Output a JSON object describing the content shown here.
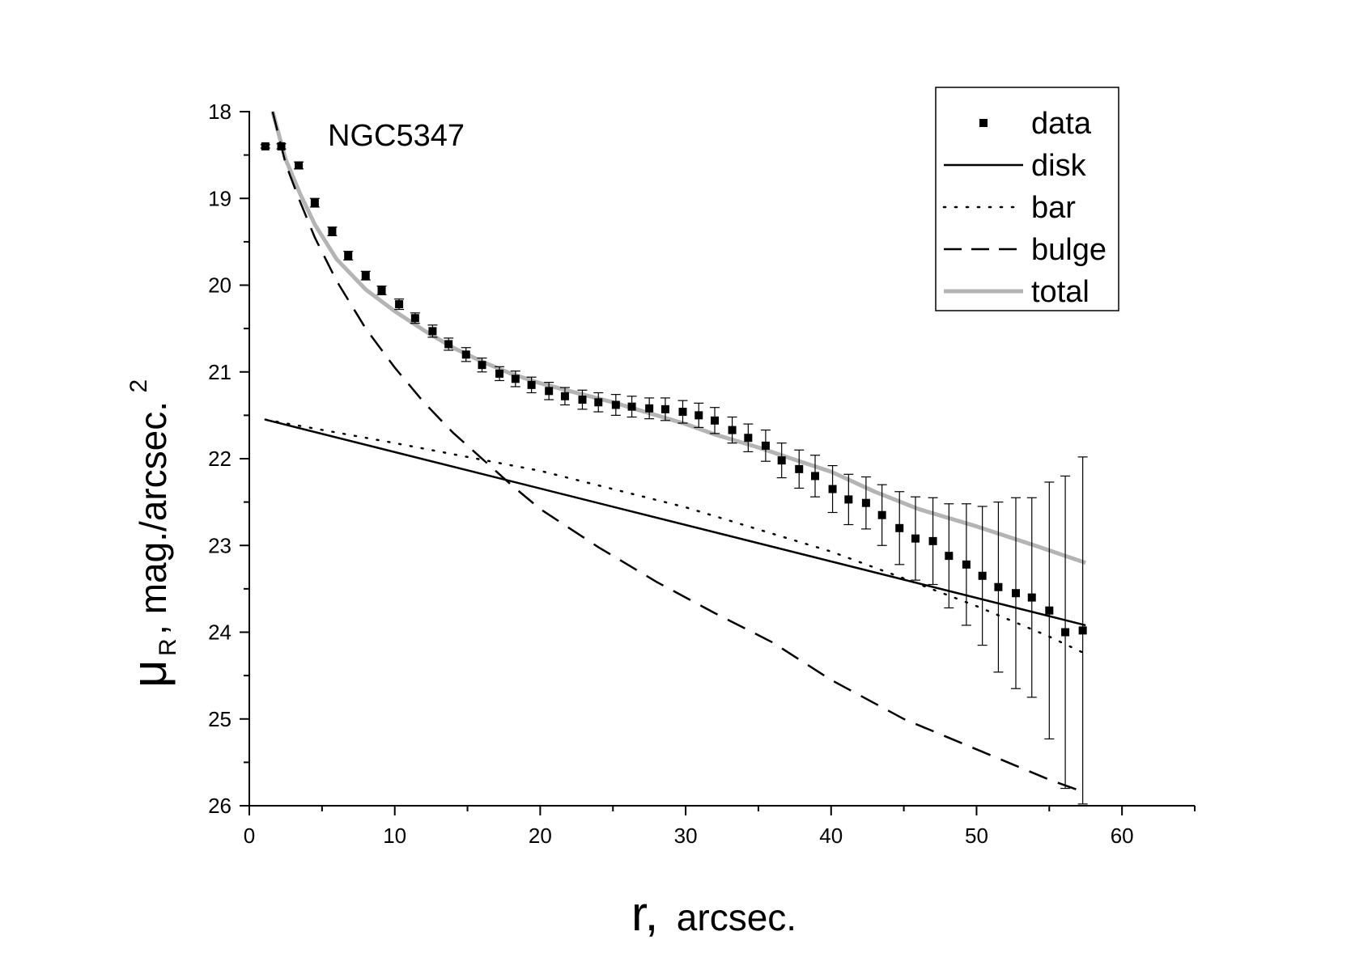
{
  "chart_data": {
    "type": "scatter",
    "title": "",
    "annotation": "NGC5347",
    "xlabel": {
      "main": "r,",
      "rest": "arcsec."
    },
    "ylabel": {
      "mu": "μ",
      "sub": "R",
      "rest": ", mag./arcsec.",
      "sup": "2"
    },
    "xlim": [
      0,
      65
    ],
    "ylim": [
      18,
      26
    ],
    "y_inverted": true,
    "x_ticks": [
      0,
      10,
      20,
      30,
      40,
      50,
      60
    ],
    "y_ticks": [
      18,
      19,
      20,
      21,
      22,
      23,
      24,
      25,
      26
    ],
    "legend_position": "top-right",
    "legend": [
      {
        "key": "data",
        "label": "data",
        "style": "square-marker",
        "color": "#000000"
      },
      {
        "key": "disk",
        "label": "disk",
        "style": "solid",
        "color": "#000000"
      },
      {
        "key": "bar",
        "label": "bar",
        "style": "dotted",
        "color": "#000000"
      },
      {
        "key": "bulge",
        "label": "bulge",
        "style": "dashed",
        "color": "#000000"
      },
      {
        "key": "total",
        "label": "total",
        "style": "solid-thick",
        "color": "#b4b4b4"
      }
    ],
    "data": {
      "r": [
        1.1,
        2.2,
        3.4,
        4.5,
        5.7,
        6.8,
        8.0,
        9.1,
        10.3,
        11.4,
        12.6,
        13.7,
        14.9,
        16.0,
        17.2,
        18.3,
        19.4,
        20.6,
        21.7,
        22.9,
        24.0,
        25.2,
        26.3,
        27.5,
        28.6,
        29.8,
        30.9,
        32.0,
        33.2,
        34.3,
        35.5,
        36.6,
        37.8,
        38.9,
        40.1,
        41.2,
        42.4,
        43.5,
        44.7,
        45.8,
        47.0,
        48.1,
        49.3,
        50.4,
        51.5,
        52.7,
        53.8,
        55.0,
        56.1,
        57.3
      ],
      "mu": [
        18.4,
        18.4,
        18.62,
        19.05,
        19.38,
        19.66,
        19.89,
        20.06,
        20.22,
        20.38,
        20.53,
        20.68,
        20.8,
        20.92,
        21.02,
        21.08,
        21.15,
        21.22,
        21.28,
        21.32,
        21.35,
        21.38,
        21.4,
        21.42,
        21.43,
        21.46,
        21.5,
        21.56,
        21.67,
        21.76,
        21.85,
        22.02,
        22.12,
        22.2,
        22.35,
        22.47,
        22.51,
        22.65,
        22.8,
        22.92,
        22.95,
        23.12,
        23.22,
        23.35,
        23.48,
        23.55,
        23.6,
        23.75,
        24.0,
        23.98
      ],
      "err": [
        0.02,
        0.03,
        0.04,
        0.05,
        0.05,
        0.05,
        0.05,
        0.05,
        0.06,
        0.06,
        0.07,
        0.07,
        0.08,
        0.08,
        0.08,
        0.09,
        0.09,
        0.1,
        0.1,
        0.11,
        0.11,
        0.12,
        0.12,
        0.12,
        0.13,
        0.13,
        0.14,
        0.15,
        0.15,
        0.16,
        0.18,
        0.2,
        0.22,
        0.24,
        0.27,
        0.29,
        0.3,
        0.35,
        0.42,
        0.48,
        0.5,
        0.6,
        0.7,
        0.8,
        0.98,
        1.1,
        1.15,
        1.48,
        1.8,
        2.0
      ]
    },
    "disk": {
      "r": [
        1.1,
        57.5
      ],
      "mu": [
        21.55,
        23.92
      ]
    },
    "bar": {
      "r": [
        1.1,
        10,
        20,
        30,
        40,
        45,
        50,
        55,
        57.5
      ],
      "mu": [
        21.55,
        21.82,
        22.14,
        22.56,
        23.07,
        23.38,
        23.7,
        24.05,
        24.25
      ]
    },
    "bulge": {
      "r": [
        1.6,
        2.5,
        3.4,
        4.5,
        6,
        8,
        10,
        12,
        14,
        16,
        18,
        20,
        22,
        24,
        26,
        28,
        30,
        32,
        34,
        36,
        40,
        45,
        50,
        55,
        57.5
      ],
      "mu": [
        18.0,
        18.6,
        19.0,
        19.45,
        19.95,
        20.5,
        20.95,
        21.35,
        21.7,
        22.0,
        22.3,
        22.58,
        22.8,
        23.02,
        23.22,
        23.42,
        23.6,
        23.78,
        23.95,
        24.12,
        24.55,
        25.0,
        25.35,
        25.7,
        25.85
      ]
    },
    "total": {
      "r": [
        1.6,
        2.5,
        3.5,
        4.5,
        6,
        8,
        10,
        12,
        14,
        16,
        18,
        20,
        22,
        25,
        28,
        30,
        32,
        35,
        38,
        40,
        43,
        46,
        50,
        54,
        57.5
      ],
      "mu": [
        18.0,
        18.55,
        18.95,
        19.3,
        19.7,
        20.05,
        20.3,
        20.52,
        20.72,
        20.88,
        21.02,
        21.13,
        21.22,
        21.35,
        21.5,
        21.6,
        21.72,
        21.87,
        22.04,
        22.15,
        22.38,
        22.58,
        22.78,
        23.0,
        23.2
      ]
    }
  }
}
